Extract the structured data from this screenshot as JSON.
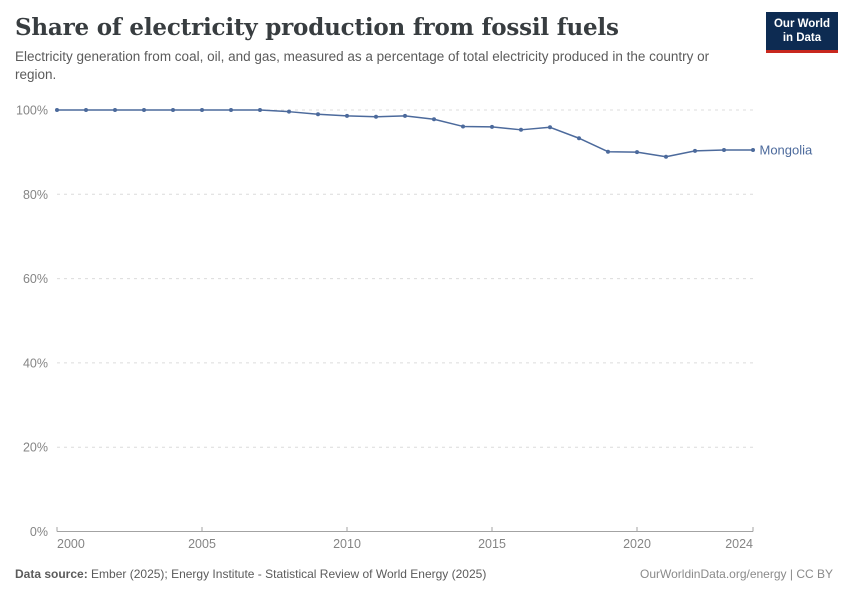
{
  "header": {
    "title": "Share of electricity production from fossil fuels",
    "subtitle": "Electricity generation from coal, oil, and gas, measured as a percentage of total electricity produced in the country or region.",
    "logo_line1": "Our World",
    "logo_line2": "in Data",
    "logo_bg_color": "#0d2b52",
    "logo_accent_color": "#c8281e"
  },
  "chart_data": {
    "type": "line",
    "title": "Share of electricity production from fossil fuels",
    "xlabel": "",
    "ylabel": "",
    "xlim": [
      2000,
      2024
    ],
    "ylim": [
      0,
      100
    ],
    "grid": "horizontal-dashed",
    "legend_position": "end-of-line-label",
    "x": [
      2000,
      2001,
      2002,
      2003,
      2004,
      2005,
      2006,
      2007,
      2008,
      2009,
      2010,
      2011,
      2012,
      2013,
      2014,
      2015,
      2016,
      2017,
      2018,
      2019,
      2020,
      2021,
      2022,
      2023,
      2024
    ],
    "series": [
      {
        "name": "Mongolia",
        "color": "#4C6A9C",
        "values": [
          100,
          100,
          100,
          100,
          100,
          100,
          100,
          100,
          99.6,
          99.0,
          98.6,
          98.4,
          98.6,
          97.8,
          96.1,
          96.0,
          95.3,
          95.9,
          93.3,
          90.1,
          90.0,
          88.9,
          90.3,
          90.5,
          90.5
        ]
      }
    ],
    "y_ticks": [
      0,
      20,
      40,
      60,
      80,
      100
    ],
    "y_tick_labels": [
      "0%",
      "20%",
      "40%",
      "60%",
      "80%",
      "100%"
    ],
    "x_ticks": [
      2000,
      2005,
      2010,
      2015,
      2020,
      2024
    ],
    "x_tick_labels": [
      "2000",
      "2005",
      "2010",
      "2015",
      "2020",
      "2024"
    ]
  },
  "footer": {
    "source_label": "Data source:",
    "source_text": "Ember (2025); Energy Institute - Statistical Review of World Energy (2025)",
    "right_text": "OurWorldinData.org/energy | CC BY"
  },
  "colors": {
    "axis_line": "#a3a3a3",
    "gridline": "#dcdcdc",
    "tick_text": "#858585"
  }
}
